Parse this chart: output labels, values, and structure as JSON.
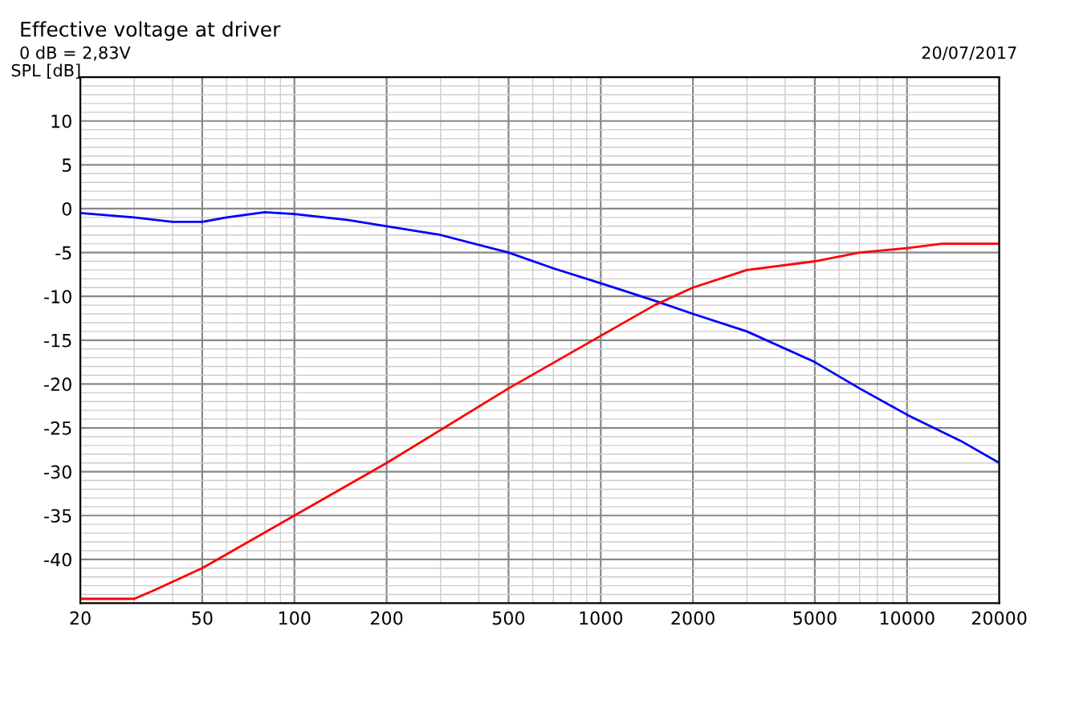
{
  "chart_data": {
    "type": "line",
    "title": "Effective voltage at driver",
    "subtitle": "0 dB = 2,83V",
    "ylabel": "SPL [dB]",
    "annotations": [
      "20/07/2017"
    ],
    "log": "x",
    "grid": true,
    "legend": false,
    "xlim": [
      20,
      20000
    ],
    "xticks": [
      20,
      50,
      100,
      200,
      500,
      1000,
      2000,
      5000,
      10000,
      20000
    ],
    "ylim": [
      -45,
      15
    ],
    "yticks": [
      -40,
      -35,
      -30,
      -25,
      -20,
      -15,
      -10,
      -5,
      0,
      5,
      10
    ],
    "series": [
      {
        "color": "#0000ff",
        "x": [
          20,
          30,
          40,
          50,
          60,
          80,
          100,
          150,
          200,
          300,
          500,
          700,
          1000,
          1500,
          2000,
          3000,
          5000,
          7000,
          10000,
          15000,
          20000
        ],
        "values": [
          -0.5,
          -1,
          -1.5,
          -1.5,
          -1.0,
          -0.4,
          -0.6,
          -1.3,
          -2,
          -3,
          -5,
          -6.8,
          -8.5,
          -10.5,
          -12,
          -14,
          -17.5,
          -20.5,
          -23.5,
          -26.5,
          -29
        ]
      },
      {
        "color": "#ff0000",
        "x": [
          20,
          30,
          35,
          50,
          100,
          200,
          500,
          1000,
          1500,
          2000,
          3000,
          5000,
          7000,
          10000,
          13000,
          20000
        ],
        "values": [
          -44.5,
          -44.5,
          -43.5,
          -41,
          -35,
          -29,
          -20.5,
          -14.5,
          -11,
          -9,
          -7,
          -6,
          -5,
          -4.5,
          -4,
          -4
        ]
      }
    ]
  }
}
